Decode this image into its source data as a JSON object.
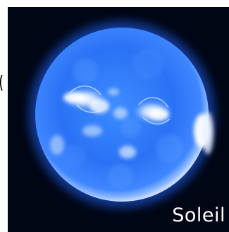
{
  "image": {
    "caption": "Soleil",
    "subject_icon": "sun-icon",
    "colors": {
      "background": "#010615",
      "sun_edge": "#1a5cf0",
      "sun_body": "#2f7fff",
      "active_regions": "#e8f2ff",
      "caption": "#ffffff"
    }
  }
}
